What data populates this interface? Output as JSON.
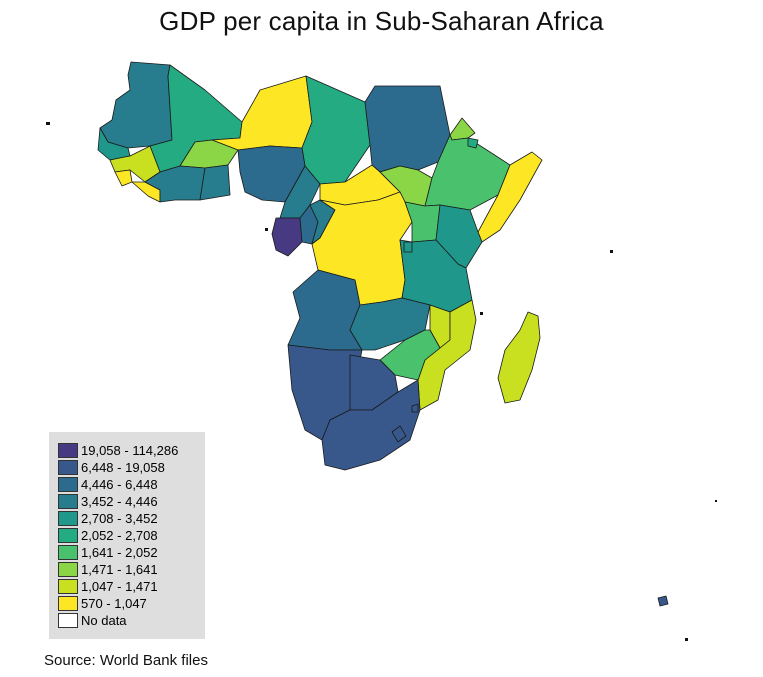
{
  "title": "GDP per capita in Sub-Saharan Africa",
  "source": "Source: World Bank files",
  "legend": {
    "classes": [
      {
        "label": "19,058 - 114,286",
        "color": "#473a83"
      },
      {
        "label": "6,448 - 19,058",
        "color": "#38588c"
      },
      {
        "label": "4,446 - 6,448",
        "color": "#2c6b8e"
      },
      {
        "label": "3,452 - 4,446",
        "color": "#277d8e"
      },
      {
        "label": "2,708 - 3,452",
        "color": "#1f978b"
      },
      {
        "label": "2,052 - 2,708",
        "color": "#25ab82"
      },
      {
        "label": "1,641 - 2,052",
        "color": "#4ac26d"
      },
      {
        "label": "1,471 - 1,641",
        "color": "#8bd646"
      },
      {
        "label": "1,047 - 1,471",
        "color": "#c8e020"
      },
      {
        "label": "570 - 1,047",
        "color": "#fde725"
      },
      {
        "label": "No data",
        "color": "#ffffff"
      }
    ]
  },
  "regions": [
    {
      "name": "Mauritania",
      "class": 3
    },
    {
      "name": "Mali",
      "class": 5
    },
    {
      "name": "Niger",
      "class": 9
    },
    {
      "name": "Chad",
      "class": 5
    },
    {
      "name": "Sudan",
      "class": 2
    },
    {
      "name": "Eritrea",
      "class": 7
    },
    {
      "name": "Senegal",
      "class": 4
    },
    {
      "name": "Guinea",
      "class": 8
    },
    {
      "name": "Sierra Leone",
      "class": 9
    },
    {
      "name": "Liberia",
      "class": 9
    },
    {
      "name": "Burkina Faso",
      "class": 7
    },
    {
      "name": "Cote d'Ivoire",
      "class": 3
    },
    {
      "name": "Ghana",
      "class": 3
    },
    {
      "name": "Nigeria",
      "class": 2
    },
    {
      "name": "Cameroon",
      "class": 3
    },
    {
      "name": "Central African Republic",
      "class": 9
    },
    {
      "name": "South Sudan",
      "class": 7
    },
    {
      "name": "Ethiopia",
      "class": 6
    },
    {
      "name": "Somalia",
      "class": 9
    },
    {
      "name": "Djibouti",
      "class": 5
    },
    {
      "name": "Equatorial Guinea",
      "class": 0
    },
    {
      "name": "Gabon",
      "class": 2
    },
    {
      "name": "Republic of the Congo",
      "class": 3
    },
    {
      "name": "DR Congo",
      "class": 9
    },
    {
      "name": "Uganda",
      "class": 6
    },
    {
      "name": "Kenya",
      "class": 4
    },
    {
      "name": "Tanzania",
      "class": 4
    },
    {
      "name": "Angola",
      "class": 2
    },
    {
      "name": "Zambia",
      "class": 3
    },
    {
      "name": "Malawi",
      "class": 8
    },
    {
      "name": "Mozambique",
      "class": 8
    },
    {
      "name": "Zimbabwe",
      "class": 6
    },
    {
      "name": "Namibia",
      "class": 1
    },
    {
      "name": "Botswana",
      "class": 1
    },
    {
      "name": "South Africa",
      "class": 1
    },
    {
      "name": "Madagascar",
      "class": 8
    },
    {
      "name": "Mauritius",
      "class": 1
    }
  ]
}
